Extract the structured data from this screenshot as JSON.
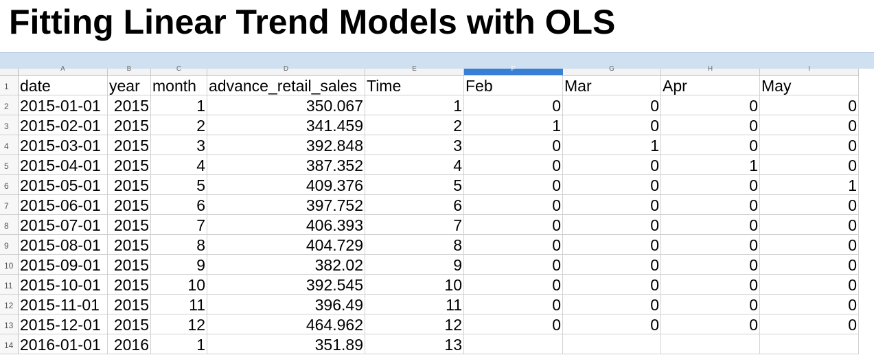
{
  "title": "Fitting Linear Trend Models with OLS",
  "column_letters": [
    "A",
    "B",
    "C",
    "D",
    "E",
    "F",
    "G",
    "H",
    "I"
  ],
  "selected_column": "F",
  "header_row": [
    "date",
    "year",
    "month",
    "advance_retail_sales",
    "Time",
    "Feb",
    "Mar",
    "Apr",
    "May"
  ],
  "rows": [
    {
      "num": "2",
      "cells": [
        "2015-01-01",
        "2015",
        "1",
        "350.067",
        "1",
        "0",
        "0",
        "0",
        "0"
      ]
    },
    {
      "num": "3",
      "cells": [
        "2015-02-01",
        "2015",
        "2",
        "341.459",
        "2",
        "1",
        "0",
        "0",
        "0"
      ]
    },
    {
      "num": "4",
      "cells": [
        "2015-03-01",
        "2015",
        "3",
        "392.848",
        "3",
        "0",
        "1",
        "0",
        "0"
      ]
    },
    {
      "num": "5",
      "cells": [
        "2015-04-01",
        "2015",
        "4",
        "387.352",
        "4",
        "0",
        "0",
        "1",
        "0"
      ]
    },
    {
      "num": "6",
      "cells": [
        "2015-05-01",
        "2015",
        "5",
        "409.376",
        "5",
        "0",
        "0",
        "0",
        "1"
      ]
    },
    {
      "num": "7",
      "cells": [
        "2015-06-01",
        "2015",
        "6",
        "397.752",
        "6",
        "0",
        "0",
        "0",
        "0"
      ]
    },
    {
      "num": "8",
      "cells": [
        "2015-07-01",
        "2015",
        "7",
        "406.393",
        "7",
        "0",
        "0",
        "0",
        "0"
      ]
    },
    {
      "num": "9",
      "cells": [
        "2015-08-01",
        "2015",
        "8",
        "404.729",
        "8",
        "0",
        "0",
        "0",
        "0"
      ]
    },
    {
      "num": "10",
      "cells": [
        "2015-09-01",
        "2015",
        "9",
        "382.02",
        "9",
        "0",
        "0",
        "0",
        "0"
      ]
    },
    {
      "num": "11",
      "cells": [
        "2015-10-01",
        "2015",
        "10",
        "392.545",
        "10",
        "0",
        "0",
        "0",
        "0"
      ]
    },
    {
      "num": "12",
      "cells": [
        "2015-11-01",
        "2015",
        "11",
        "396.49",
        "11",
        "0",
        "0",
        "0",
        "0"
      ]
    },
    {
      "num": "13",
      "cells": [
        "2015-12-01",
        "2015",
        "12",
        "464.962",
        "12",
        "0",
        "0",
        "0",
        "0"
      ]
    },
    {
      "num": "14",
      "cells": [
        "2016-01-01",
        "2016",
        "1",
        "351.89",
        "13",
        "",
        "",
        "",
        ""
      ]
    }
  ]
}
